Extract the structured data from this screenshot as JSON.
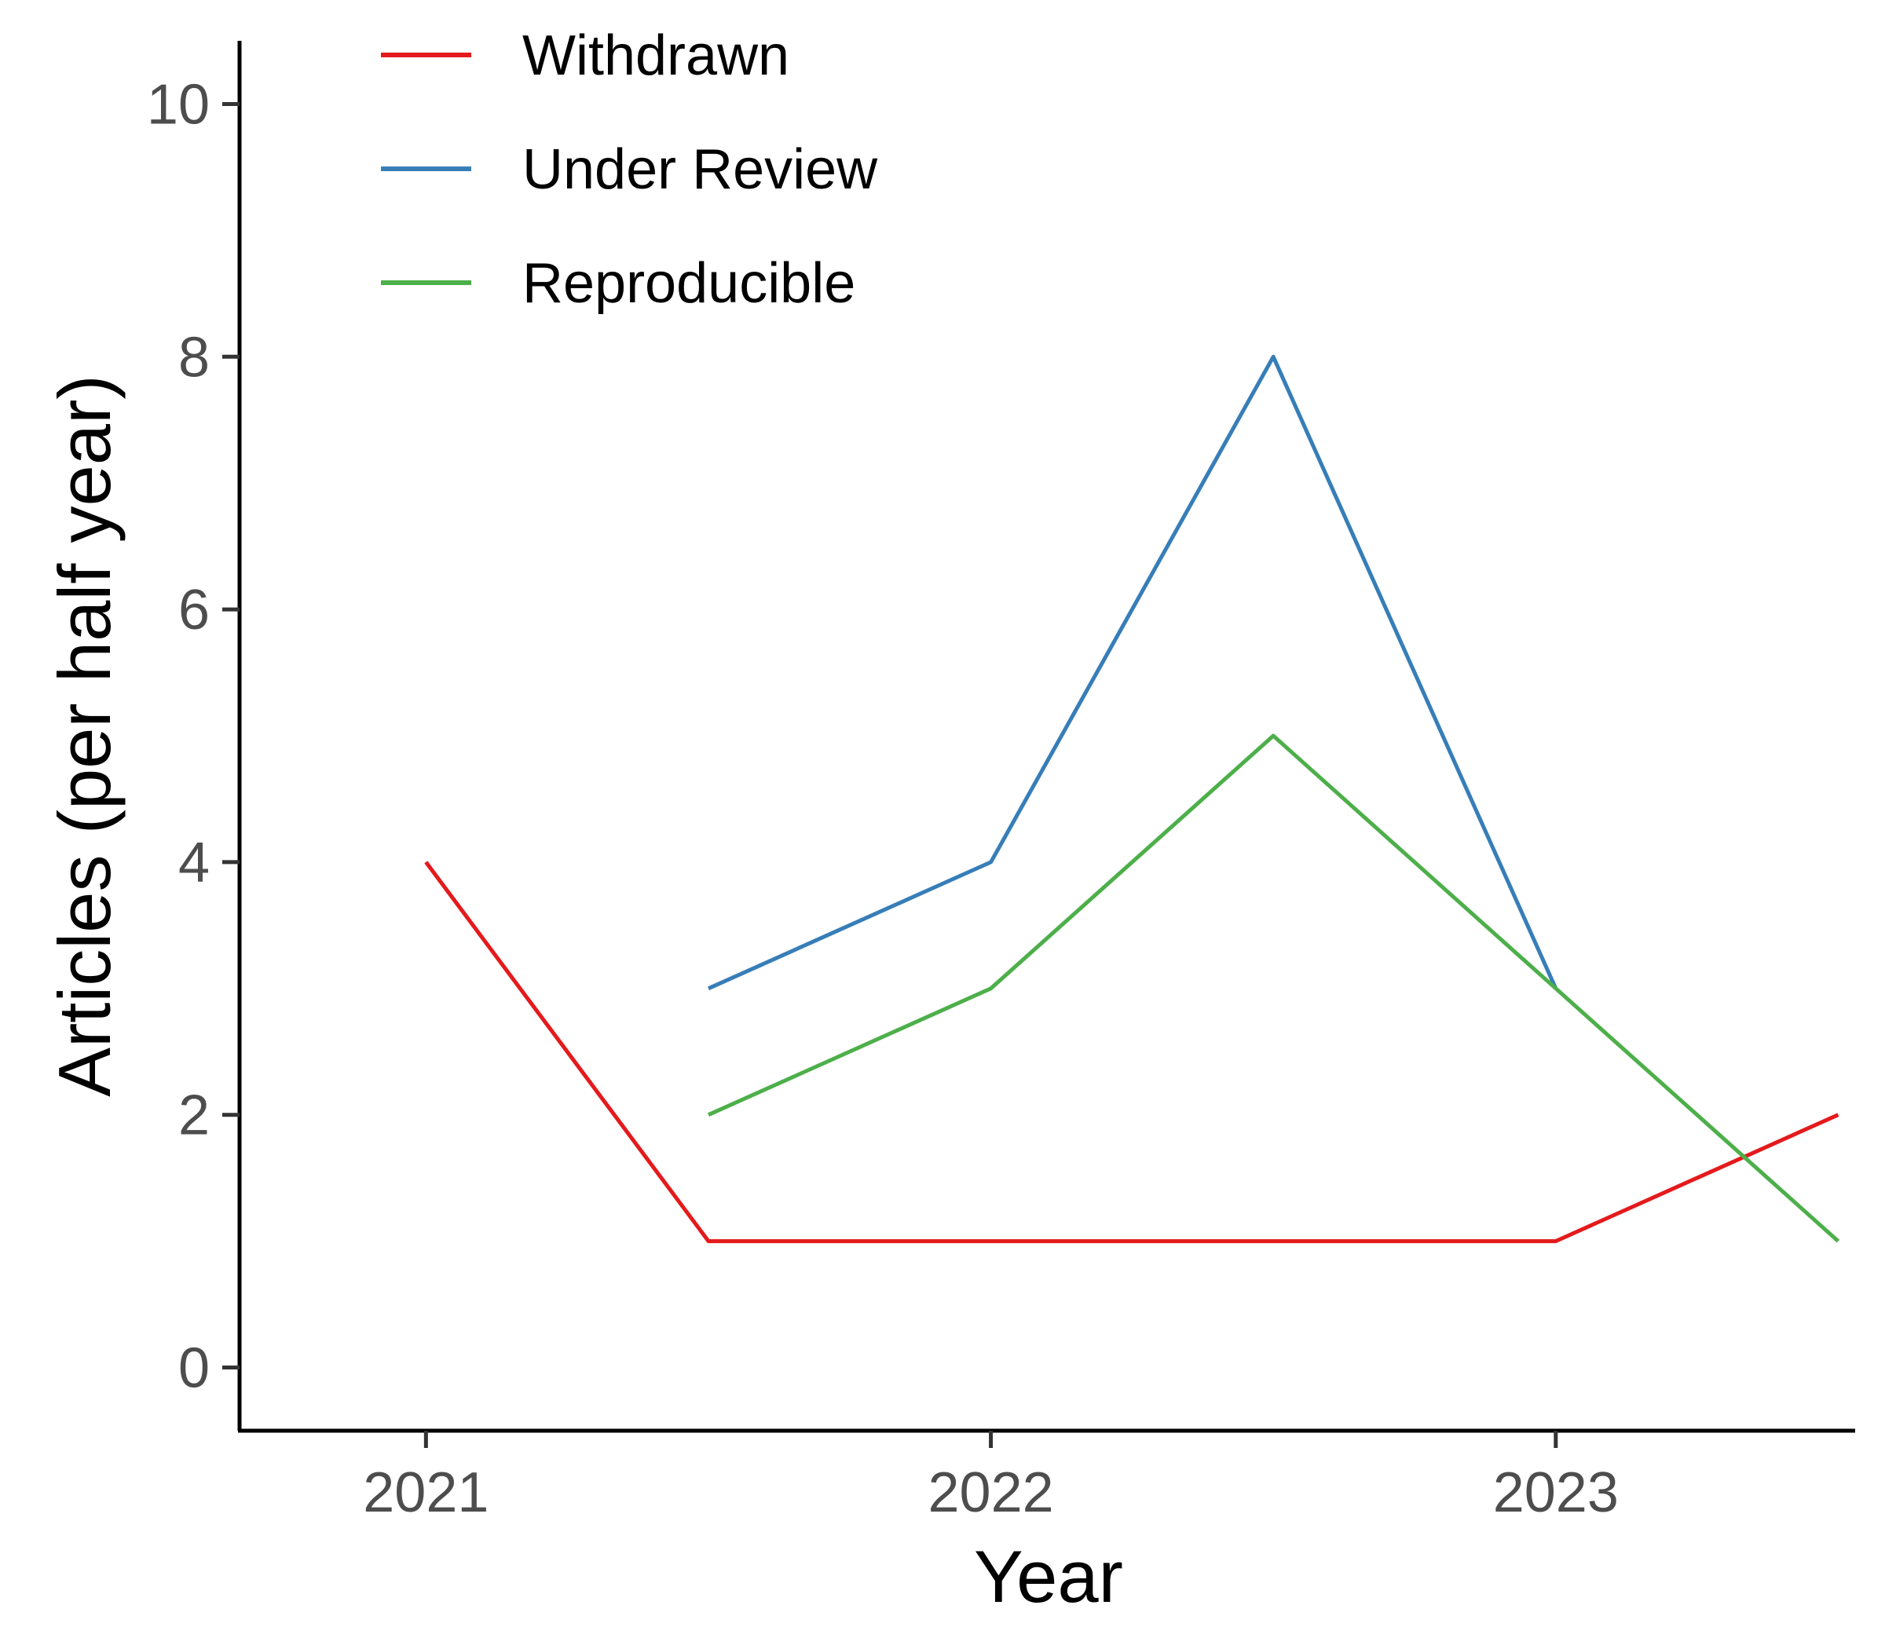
{
  "chart_data": {
    "type": "line",
    "title": "",
    "xlabel": "Year",
    "ylabel": "Articles (per half year)",
    "xlim": [
      2020.67,
      2023.53
    ],
    "ylim": [
      -0.5,
      10.5
    ],
    "x_ticks": [
      2021,
      2022,
      2023
    ],
    "x_tick_labels": [
      "2021",
      "2022",
      "2023"
    ],
    "y_ticks": [
      0,
      2,
      4,
      6,
      8,
      10
    ],
    "y_tick_labels": [
      "0",
      "2",
      "4",
      "6",
      "8",
      "10"
    ],
    "grid": false,
    "legend_position": "top-left",
    "series": [
      {
        "name": "Withdrawn",
        "color": "#e41a1c",
        "points": [
          [
            2021.0,
            4
          ],
          [
            2021.5,
            1
          ],
          [
            2022.0,
            1
          ],
          [
            2022.5,
            1
          ],
          [
            2023.0,
            1
          ],
          [
            2023.5,
            2
          ]
        ]
      },
      {
        "name": "Under Review",
        "color": "#377eb8",
        "points": [
          [
            2021.5,
            3
          ],
          [
            2022.0,
            4
          ],
          [
            2022.5,
            8
          ],
          [
            2023.0,
            3
          ]
        ]
      },
      {
        "name": "Reproducible",
        "color": "#4daf4a",
        "points": [
          [
            2021.5,
            2
          ],
          [
            2022.0,
            3
          ],
          [
            2022.5,
            5
          ],
          [
            2023.0,
            3
          ],
          [
            2023.5,
            1
          ]
        ]
      }
    ]
  }
}
